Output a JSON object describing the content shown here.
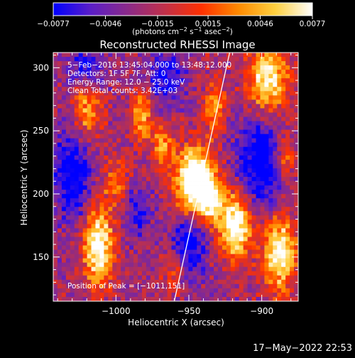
{
  "chart_data": {
    "type": "heatmap",
    "title": "Reconstructed RHESSI Image",
    "xlabel": "Heliocentric X (arcsec)",
    "ylabel": "Heliocentric Y (arcsec)",
    "xlim": [
      -1043,
      -875
    ],
    "ylim": [
      115,
      312
    ],
    "xticks": [
      -1000,
      -950,
      -900
    ],
    "yticks": [
      150,
      200,
      250,
      300
    ],
    "xtick_labels": [
      "−1000",
      "−950",
      "−900"
    ],
    "ytick_labels": [
      "150",
      "200",
      "250",
      "300"
    ],
    "colorbar": {
      "range": [
        -0.0077,
        0.0077
      ],
      "ticks": [
        -0.0077,
        -0.0046,
        -0.0015,
        0.0015,
        0.0046,
        0.0077
      ],
      "tick_labels": [
        "−0.0077",
        "−0.0046",
        "−0.0015",
        "0.0015",
        "0.0046",
        "0.0077"
      ],
      "unit_main": "(photons cm",
      "unit_sup1": "−2",
      "unit_mid1": " s",
      "unit_sup2": "−1",
      "unit_mid2": " asec",
      "unit_sup3": "−2",
      "unit_end": ")",
      "colors": [
        "#0000ff",
        "#5a1ec8",
        "#8a2a8a",
        "#c0304a",
        "#ff3000",
        "#ff8a00",
        "#ffd040",
        "#ffffff"
      ]
    },
    "annotations": {
      "line1": "5−Feb−2016 13:45:04.000 to 13:48:12.000",
      "line2": "Detectors: 1F 5F 7F, Att: 0",
      "line3": "Energy Range: 12.0 − 25.0 keV",
      "line4": "Clean    Total counts: 3.42E+03",
      "peak": "Position of Peak = [−1011,151]"
    },
    "limb_line": {
      "points": [
        [
          -960,
          115
        ],
        [
          -922,
          312
        ]
      ]
    },
    "sources": [
      {
        "x": -946,
        "y": 210,
        "sx": 9,
        "sy": 18,
        "amp": 1.0
      },
      {
        "x": -935,
        "y": 196,
        "sx": 5,
        "sy": 12,
        "amp": 0.6
      },
      {
        "x": -918,
        "y": 176,
        "sx": 8,
        "sy": 19,
        "amp": 0.78
      },
      {
        "x": -1012,
        "y": 158,
        "sx": 7,
        "sy": 22,
        "amp": 0.74
      },
      {
        "x": -888,
        "y": 154,
        "sx": 8,
        "sy": 22,
        "amp": 0.7
      },
      {
        "x": -896,
        "y": 290,
        "sx": 10,
        "sy": 20,
        "amp": 0.66
      },
      {
        "x": -1020,
        "y": 268,
        "sx": 7,
        "sy": 16,
        "amp": 0.45
      },
      {
        "x": -982,
        "y": 262,
        "sx": 5,
        "sy": 15,
        "amp": 0.48
      },
      {
        "x": -932,
        "y": 270,
        "sx": 5,
        "sy": 15,
        "amp": 0.42
      },
      {
        "x": -968,
        "y": 238,
        "sx": 5,
        "sy": 12,
        "amp": 0.42
      },
      {
        "x": -885,
        "y": 230,
        "sx": 6,
        "sy": 14,
        "amp": 0.4
      },
      {
        "x": -1000,
        "y": 210,
        "sx": 6,
        "sy": 14,
        "amp": 0.3
      },
      {
        "x": -960,
        "y": 140,
        "sx": 6,
        "sy": 12,
        "amp": 0.28
      }
    ],
    "lows": [
      {
        "x": -1030,
        "y": 215,
        "sx": 9,
        "sy": 24,
        "amp": 0.45
      },
      {
        "x": -1020,
        "y": 298,
        "sx": 9,
        "sy": 12,
        "amp": 0.35
      },
      {
        "x": -900,
        "y": 225,
        "sx": 12,
        "sy": 28,
        "amp": 0.5
      },
      {
        "x": -950,
        "y": 160,
        "sx": 9,
        "sy": 18,
        "amp": 0.42
      },
      {
        "x": -966,
        "y": 292,
        "sx": 9,
        "sy": 15,
        "amp": 0.35
      },
      {
        "x": -985,
        "y": 185,
        "sx": 6,
        "sy": 14,
        "amp": 0.3
      }
    ]
  },
  "footer": {
    "date": "17−May−2022 22:53"
  }
}
